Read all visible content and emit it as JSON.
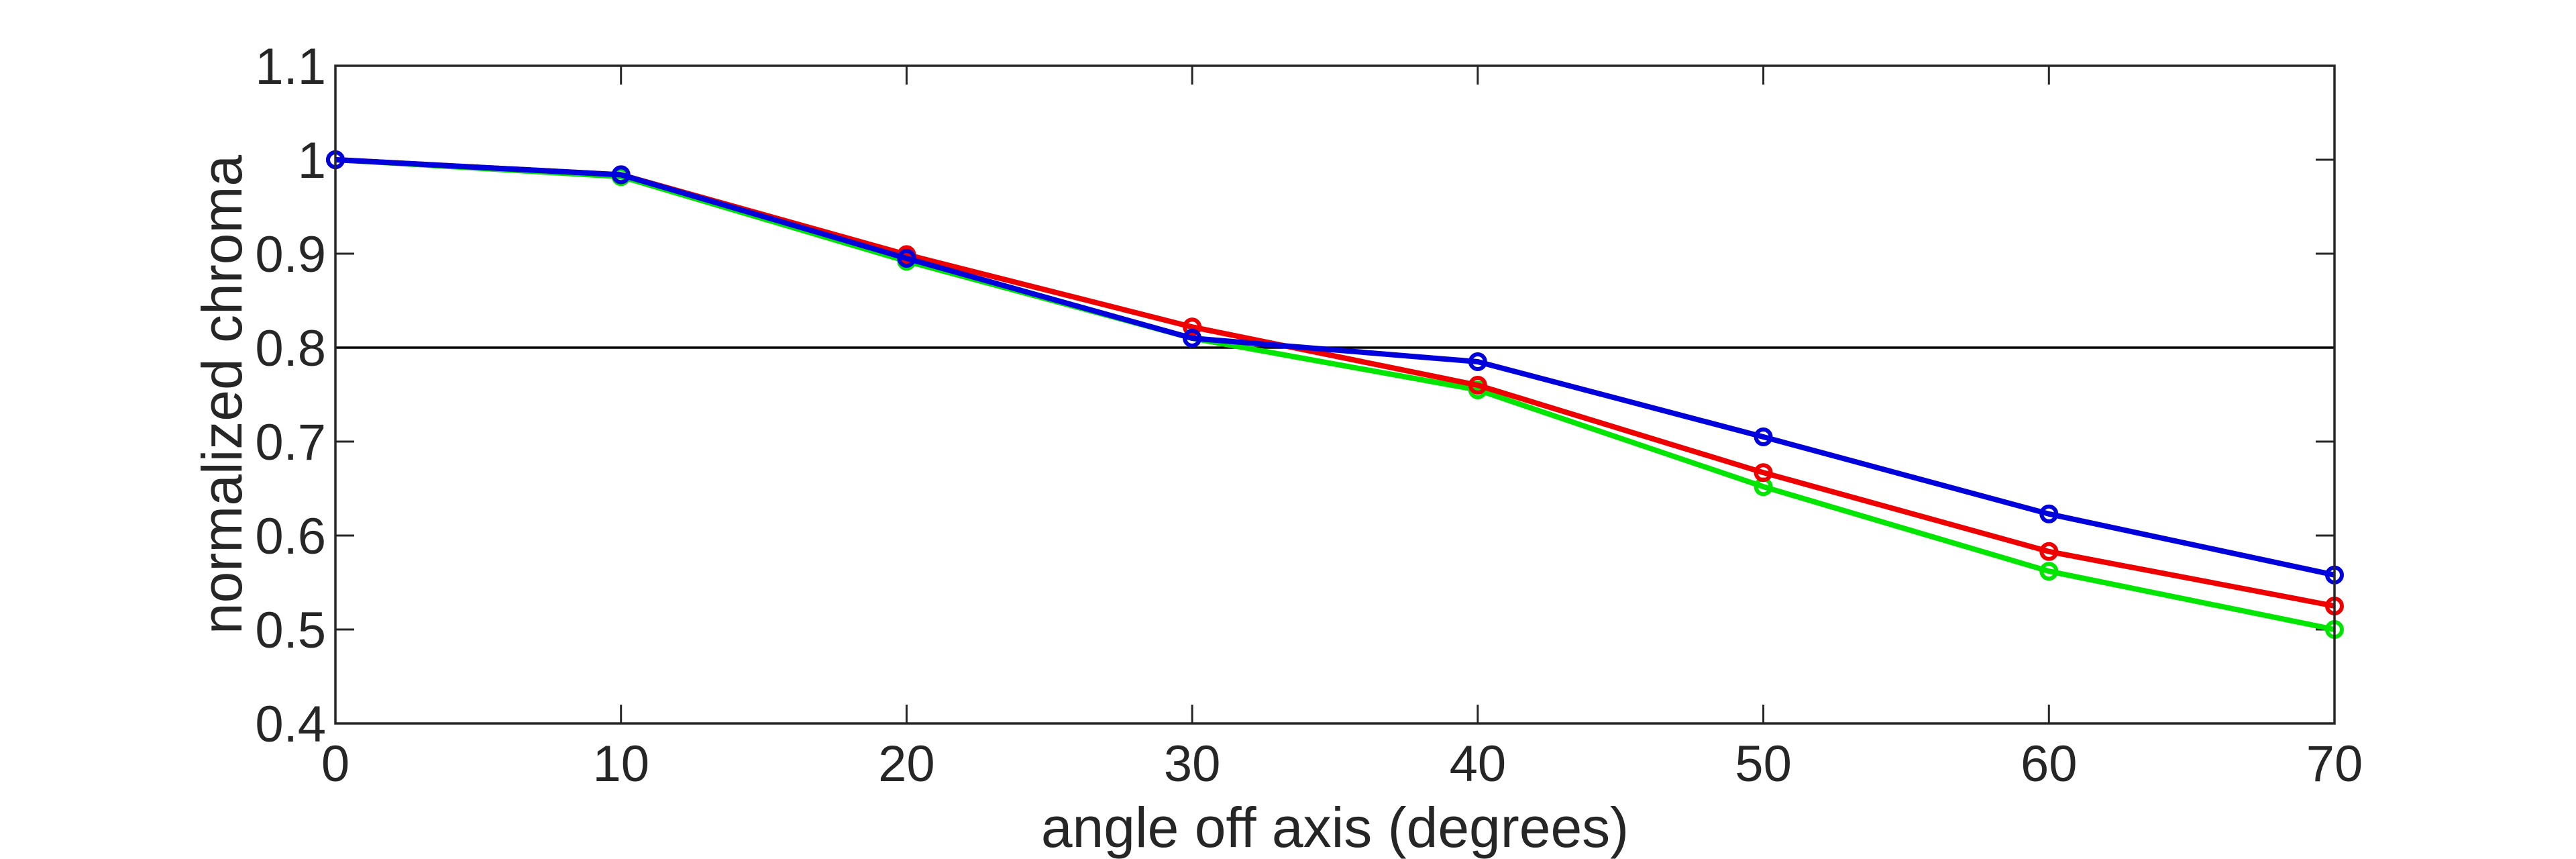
{
  "chart_data": {
    "type": "line",
    "title": "",
    "xlabel": "angle off axis (degrees)",
    "ylabel": "normalized chroma",
    "xlim": [
      0,
      70
    ],
    "ylim": [
      0.4,
      1.1
    ],
    "x_ticks": [
      0,
      10,
      20,
      30,
      40,
      50,
      60,
      70
    ],
    "x_tick_labels": [
      "0",
      "10",
      "20",
      "30",
      "40",
      "50",
      "60",
      "70"
    ],
    "y_ticks": [
      0.4,
      0.5,
      0.6,
      0.7,
      0.8,
      0.9,
      1.0,
      1.1
    ],
    "y_tick_labels": [
      "0.4",
      "0.5",
      "0.6",
      "0.7",
      "0.8",
      "0.9",
      "1",
      "1.1"
    ],
    "grid": false,
    "reference_line": {
      "y": 0.8,
      "color": "#000000"
    },
    "x": [
      0,
      10,
      20,
      30,
      40,
      50,
      60,
      70
    ],
    "series": [
      {
        "color": "#00e600",
        "marker": "circle",
        "values": [
          1.0,
          0.982,
          0.892,
          0.81,
          0.755,
          0.652,
          0.562,
          0.5
        ]
      },
      {
        "color": "#ee0000",
        "marker": "circle",
        "values": [
          1.0,
          0.984,
          0.899,
          0.822,
          0.76,
          0.667,
          0.583,
          0.525
        ]
      },
      {
        "color": "#0000dd",
        "marker": "circle",
        "values": [
          1.0,
          0.984,
          0.895,
          0.81,
          0.785,
          0.705,
          0.623,
          0.558
        ]
      }
    ]
  }
}
